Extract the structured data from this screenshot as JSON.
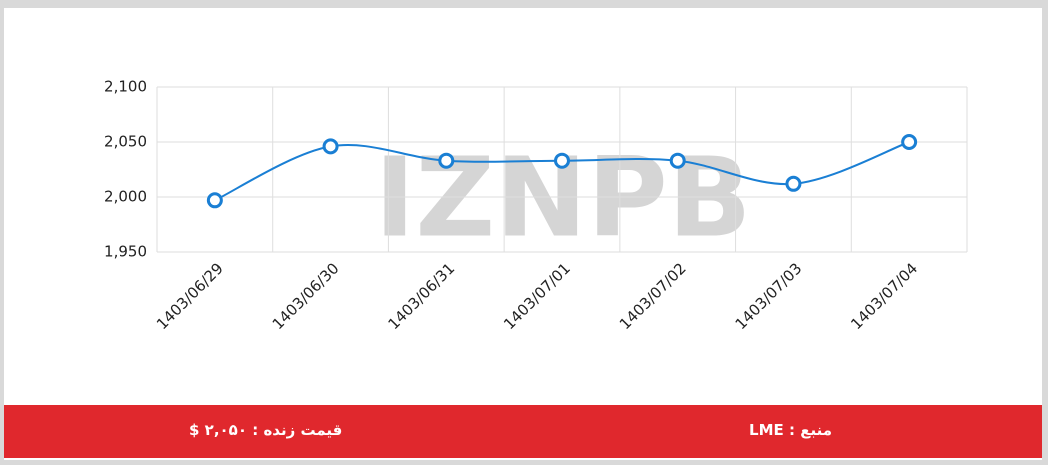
{
  "chart_data": {
    "type": "line",
    "categories": [
      "1403/06/29",
      "1403/06/30",
      "1403/06/31",
      "1403/07/01",
      "1403/07/02",
      "1403/07/03",
      "1403/07/04"
    ],
    "series": [
      {
        "color": "#1a7fd4",
        "values": [
          1997,
          2046,
          2033,
          2033,
          2033,
          2012,
          2050
        ]
      }
    ],
    "ylim": [
      1950,
      2100
    ],
    "yticks": [
      {
        "value": 1950,
        "label": "1,950"
      },
      {
        "value": 2000,
        "label": "2,000"
      },
      {
        "value": 2050,
        "label": "2,050"
      },
      {
        "value": 2100,
        "label": "2,100"
      }
    ],
    "grid": true
  },
  "watermark": "IZNPB",
  "footer": {
    "source": "منبع : LME",
    "price": "قیمت زنده : ۲,۰۵۰ $"
  }
}
